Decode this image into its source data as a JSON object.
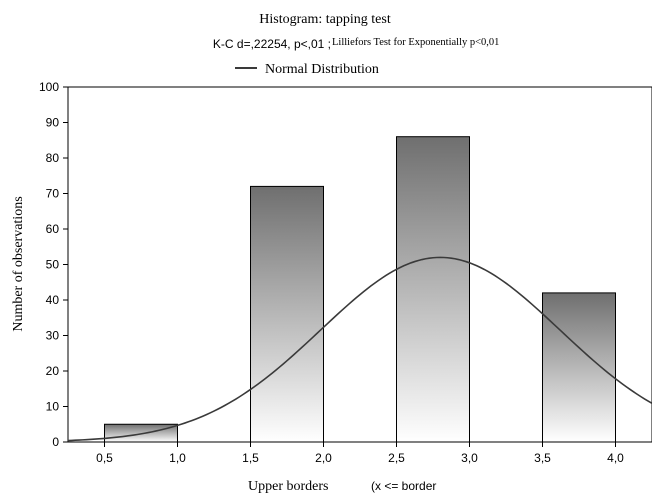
{
  "chart_data": {
    "type": "bar",
    "title": "Histogram: tapping test",
    "subtitle_stat": "K-C d=,22254, p<,01 ;",
    "subtitle_test": "Lilliefors Test for Exponentially p<0,01",
    "legend_label": "Normal Distribution",
    "legend_placement": "top-left",
    "xlabel": "Upper borders",
    "xlabel_suffix": "(x <= border",
    "ylabel": "Number of observations",
    "categories": [
      "0,5",
      "1,0",
      "1,5",
      "2,0",
      "2,5",
      "3,0",
      "3,5",
      "4,0"
    ],
    "bins": [
      {
        "from": 0.5,
        "to": 1.0,
        "value": 5
      },
      {
        "from": 1.5,
        "to": 2.0,
        "value": 72
      },
      {
        "from": 2.5,
        "to": 3.0,
        "value": 86
      },
      {
        "from": 3.5,
        "to": 4.0,
        "value": 42
      }
    ],
    "normal_curve": {
      "mean": 2.8,
      "sd": 0.82,
      "peak": 52
    },
    "xlim": [
      0.25,
      4.25
    ],
    "ylim": [
      0,
      100
    ],
    "yticks": [
      0,
      10,
      20,
      30,
      40,
      50,
      60,
      70,
      80,
      90,
      100
    ],
    "grid": false,
    "colors": {
      "bar_top": "#6f6f6f",
      "bar_bottom": "#ffffff",
      "curve": "#3a3a3a",
      "axis": "#000000"
    }
  }
}
